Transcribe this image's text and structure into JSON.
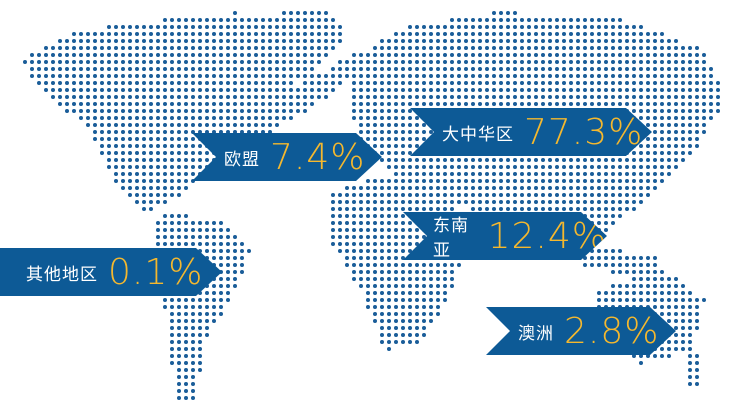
{
  "colors": {
    "banner": "#0d5a96",
    "dots": "#1a5d99",
    "percent": "#f5b82e"
  },
  "regions": [
    {
      "name": "欧盟",
      "value": "7.4%"
    },
    {
      "name": "大中华区",
      "value": "77.3%"
    },
    {
      "name": "东南亚",
      "value": "12.4%"
    },
    {
      "name": "其他地区",
      "value": "0.1%"
    },
    {
      "name": "澳洲",
      "value": "2.8%"
    }
  ]
}
